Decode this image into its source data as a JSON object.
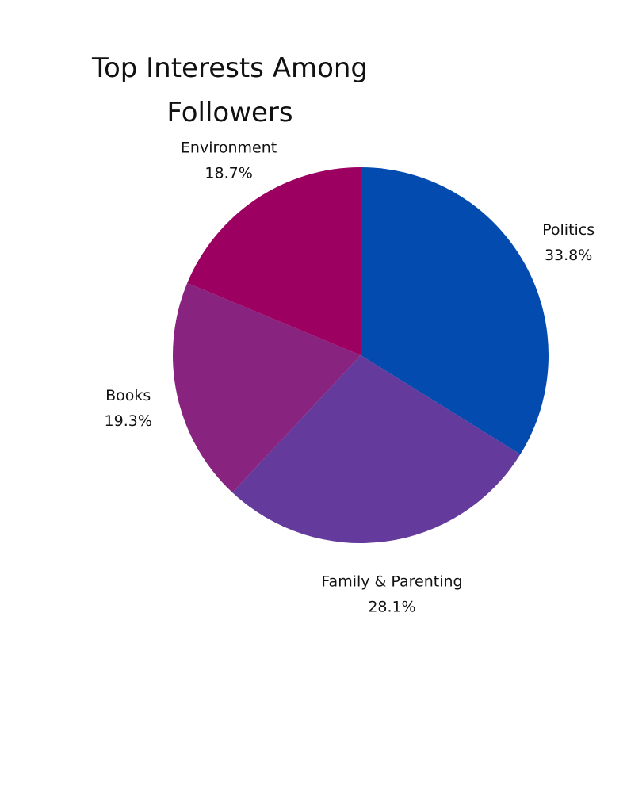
{
  "chart_data": {
    "type": "pie",
    "title": "Top Interests Among\nFollowers",
    "slices": [
      {
        "label": "Politics",
        "value": 33.8,
        "value_text": "33.8%",
        "color": "#034BAF"
      },
      {
        "label": "Family & Parenting",
        "value": 28.1,
        "value_text": "28.1%",
        "color": "#643A9D"
      },
      {
        "label": "Books",
        "value": 19.3,
        "value_text": "19.3%",
        "color": "#88237F"
      },
      {
        "label": "Environment",
        "value": 18.7,
        "value_text": "18.7%",
        "color": "#9C0061"
      }
    ],
    "start_angle_deg": 0,
    "direction": "clockwise",
    "labels_position": "outside",
    "legend": "none"
  }
}
